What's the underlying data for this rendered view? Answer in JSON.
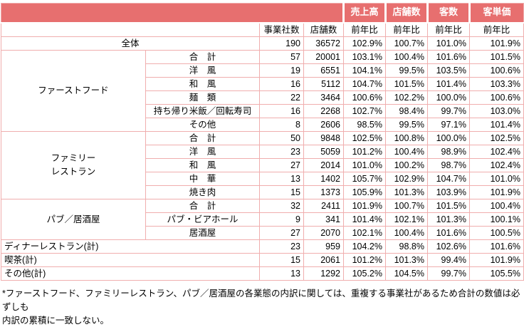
{
  "chart_data": {
    "type": "table",
    "header": {
      "metric_groups": [
        "売上高",
        "店舗数",
        "客数",
        "客単価"
      ],
      "business_count_label": "事業社数",
      "store_count_label": "店舗数",
      "yoy_label": "前年比"
    },
    "rows": [
      {
        "name": "全体",
        "span": "full",
        "align": "center",
        "values": [
          "190",
          "36572",
          "102.9%",
          "100.7%",
          "101.0%",
          "101.9%"
        ]
      },
      {
        "group": "ファーストフード",
        "group_rows": 6,
        "name": "合　計",
        "values": [
          "57",
          "20001",
          "103.1%",
          "100.4%",
          "101.6%",
          "101.5%"
        ]
      },
      {
        "name": "洋　風",
        "values": [
          "19",
          "6551",
          "104.1%",
          "99.5%",
          "103.5%",
          "100.6%"
        ]
      },
      {
        "name": "和　風",
        "values": [
          "16",
          "5112",
          "104.7%",
          "101.5%",
          "101.4%",
          "103.3%"
        ]
      },
      {
        "name": "麺　類",
        "values": [
          "22",
          "3464",
          "100.6%",
          "102.2%",
          "100.0%",
          "100.6%"
        ]
      },
      {
        "name": "持ち帰り米飯／回転寿司",
        "values": [
          "16",
          "2268",
          "102.7%",
          "98.4%",
          "99.7%",
          "103.0%"
        ]
      },
      {
        "name": "その他",
        "values": [
          "8",
          "2606",
          "98.5%",
          "99.5%",
          "97.1%",
          "101.4%"
        ]
      },
      {
        "group": "ファミリー\nレストラン",
        "group_rows": 5,
        "name": "合　計",
        "values": [
          "50",
          "9848",
          "102.5%",
          "100.8%",
          "100.0%",
          "102.5%"
        ]
      },
      {
        "name": "洋　風",
        "values": [
          "23",
          "5059",
          "101.2%",
          "100.4%",
          "98.9%",
          "102.4%"
        ]
      },
      {
        "name": "和　風",
        "values": [
          "27",
          "2014",
          "101.0%",
          "100.2%",
          "98.7%",
          "102.4%"
        ]
      },
      {
        "name": "中　華",
        "values": [
          "13",
          "1402",
          "105.7%",
          "102.9%",
          "104.7%",
          "101.0%"
        ]
      },
      {
        "name": "焼き肉",
        "values": [
          "15",
          "1373",
          "105.9%",
          "101.3%",
          "103.9%",
          "101.9%"
        ]
      },
      {
        "group": "パブ／居酒屋",
        "group_rows": 3,
        "name": "合　計",
        "values": [
          "32",
          "2411",
          "101.9%",
          "100.7%",
          "101.5%",
          "100.4%"
        ]
      },
      {
        "name": "パブ・ビアホール",
        "values": [
          "9",
          "341",
          "101.4%",
          "102.1%",
          "101.3%",
          "100.1%"
        ]
      },
      {
        "name": "居酒屋",
        "values": [
          "27",
          "2070",
          "102.1%",
          "100.4%",
          "101.6%",
          "100.5%"
        ]
      },
      {
        "name": "ディナーレストラン(計)",
        "span": "full",
        "align": "left",
        "values": [
          "23",
          "959",
          "104.2%",
          "98.8%",
          "102.6%",
          "101.6%"
        ]
      },
      {
        "name": "喫茶(計)",
        "span": "full",
        "align": "left",
        "values": [
          "15",
          "2061",
          "101.2%",
          "101.3%",
          "99.4%",
          "101.9%"
        ]
      },
      {
        "name": "その他(計)",
        "span": "full",
        "align": "left",
        "values": [
          "13",
          "1292",
          "105.2%",
          "104.5%",
          "99.7%",
          "105.5%"
        ]
      }
    ]
  },
  "footnote": {
    "text": "*ファーストフード、ファミリーレストラン、パブ／居酒屋の各業態の内訳に関しては、重複する事業社があるため合計の数値は必ずしも\n内訳の累積に一致しない。"
  },
  "colors": {
    "header_bg": "#E76F6F",
    "header_text": "#FFFFFF",
    "grid_border": "#F0AEAE",
    "text": "#000000"
  }
}
